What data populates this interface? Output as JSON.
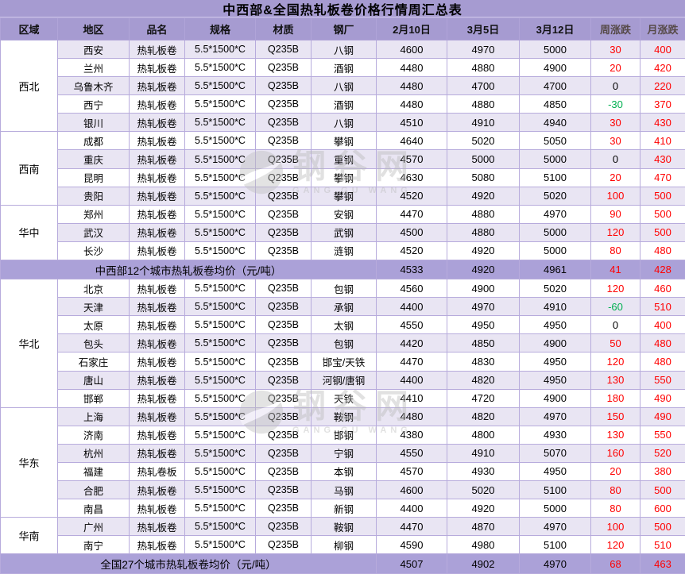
{
  "title": "中西部&全国热轧板卷价格行情周汇总表",
  "watermark": {
    "cn": "钢谷网",
    "en": "GANG GU WANG"
  },
  "colors": {
    "header_bg": "#a69bd1",
    "summary_bg": "#aba1d8",
    "stripe_bg": "#e9e5f3",
    "border": "#b7abdc",
    "up_red": "#ff0000",
    "down_green": "#00b050"
  },
  "chart_data": {
    "type": "table",
    "title": "中西部&全国热轧板卷价格行情周汇总表",
    "columns": [
      "区域",
      "地区",
      "品名",
      "规格",
      "材质",
      "钢厂",
      "2月10日",
      "3月5日",
      "3月12日",
      "周涨跌",
      "月涨跌"
    ],
    "regions": [
      {
        "name": "西北",
        "cities": [
          {
            "city": "西安",
            "product": "热轧板卷",
            "spec": "5.5*1500*C",
            "material": "Q235B",
            "mill": "八钢",
            "prices": [
              4600,
              4970,
              5000
            ],
            "week": 30,
            "month": 400
          },
          {
            "city": "兰州",
            "product": "热轧板卷",
            "spec": "5.5*1500*C",
            "material": "Q235B",
            "mill": "酒钢",
            "prices": [
              4480,
              4880,
              4900
            ],
            "week": 20,
            "month": 420
          },
          {
            "city": "乌鲁木齐",
            "product": "热轧板卷",
            "spec": "5.5*1500*C",
            "material": "Q235B",
            "mill": "八钢",
            "prices": [
              4480,
              4700,
              4700
            ],
            "week": 0,
            "month": 220
          },
          {
            "city": "西宁",
            "product": "热轧板卷",
            "spec": "5.5*1500*C",
            "material": "Q235B",
            "mill": "酒钢",
            "prices": [
              4480,
              4880,
              4850
            ],
            "week": -30,
            "month": 370
          },
          {
            "city": "银川",
            "product": "热轧板卷",
            "spec": "5.5*1500*C",
            "material": "Q235B",
            "mill": "八钢",
            "prices": [
              4510,
              4910,
              4940
            ],
            "week": 30,
            "month": 430
          }
        ]
      },
      {
        "name": "西南",
        "cities": [
          {
            "city": "成都",
            "product": "热轧板卷",
            "spec": "5.5*1500*C",
            "material": "Q235B",
            "mill": "攀钢",
            "prices": [
              4640,
              5020,
              5050
            ],
            "week": 30,
            "month": 410
          },
          {
            "city": "重庆",
            "product": "热轧板卷",
            "spec": "5.5*1500*C",
            "material": "Q235B",
            "mill": "重钢",
            "prices": [
              4570,
              5000,
              5000
            ],
            "week": 0,
            "month": 430
          },
          {
            "city": "昆明",
            "product": "热轧板卷",
            "spec": "5.5*1500*C",
            "material": "Q235B",
            "mill": "攀钢",
            "prices": [
              4630,
              5080,
              5100
            ],
            "week": 20,
            "month": 470
          },
          {
            "city": "贵阳",
            "product": "热轧板卷",
            "spec": "5.5*1500*C",
            "material": "Q235B",
            "mill": "攀钢",
            "prices": [
              4520,
              4920,
              5020
            ],
            "week": 100,
            "month": 500
          }
        ]
      },
      {
        "name": "华中",
        "cities": [
          {
            "city": "郑州",
            "product": "热轧板卷",
            "spec": "5.5*1500*C",
            "material": "Q235B",
            "mill": "安钢",
            "prices": [
              4470,
              4880,
              4970
            ],
            "week": 90,
            "month": 500
          },
          {
            "city": "武汉",
            "product": "热轧板卷",
            "spec": "5.5*1500*C",
            "material": "Q235B",
            "mill": "武钢",
            "prices": [
              4500,
              4880,
              5000
            ],
            "week": 120,
            "month": 500
          },
          {
            "city": "长沙",
            "product": "热轧板卷",
            "spec": "5.5*1500*C",
            "material": "Q235B",
            "mill": "涟钢",
            "prices": [
              4520,
              4920,
              5000
            ],
            "week": 80,
            "month": 480
          }
        ]
      },
      {
        "name": "华北",
        "cities": [
          {
            "city": "北京",
            "product": "热轧板卷",
            "spec": "5.5*1500*C",
            "material": "Q235B",
            "mill": "包钢",
            "prices": [
              4560,
              4900,
              5020
            ],
            "week": 120,
            "month": 460
          },
          {
            "city": "天津",
            "product": "热轧板卷",
            "spec": "5.5*1500*C",
            "material": "Q235B",
            "mill": "承钢",
            "prices": [
              4400,
              4970,
              4910
            ],
            "week": -60,
            "month": 510
          },
          {
            "city": "太原",
            "product": "热轧板卷",
            "spec": "5.5*1500*C",
            "material": "Q235B",
            "mill": "太钢",
            "prices": [
              4550,
              4950,
              4950
            ],
            "week": 0,
            "month": 400
          },
          {
            "city": "包头",
            "product": "热轧板卷",
            "spec": "5.5*1500*C",
            "material": "Q235B",
            "mill": "包钢",
            "prices": [
              4420,
              4850,
              4900
            ],
            "week": 50,
            "month": 480
          },
          {
            "city": "石家庄",
            "product": "热轧板卷",
            "spec": "5.5*1500*C",
            "material": "Q235B",
            "mill": "邯宝/天铁",
            "prices": [
              4470,
              4830,
              4950
            ],
            "week": 120,
            "month": 480
          },
          {
            "city": "唐山",
            "product": "热轧板卷",
            "spec": "5.5*1500*C",
            "material": "Q235B",
            "mill": "河钢/唐钢",
            "prices": [
              4400,
              4820,
              4950
            ],
            "week": 130,
            "month": 550
          },
          {
            "city": "邯郸",
            "product": "热轧板卷",
            "spec": "5.5*1500*C",
            "material": "Q235B",
            "mill": "天铁",
            "prices": [
              4410,
              4720,
              4900
            ],
            "week": 180,
            "month": 490
          }
        ]
      },
      {
        "name": "华东",
        "cities": [
          {
            "city": "上海",
            "product": "热轧板卷",
            "spec": "5.5*1500*C",
            "material": "Q235B",
            "mill": "鞍钢",
            "prices": [
              4480,
              4820,
              4970
            ],
            "week": 150,
            "month": 490
          },
          {
            "city": "济南",
            "product": "热轧板卷",
            "spec": "5.5*1500*C",
            "material": "Q235B",
            "mill": "邯钢",
            "prices": [
              4380,
              4800,
              4930
            ],
            "week": 130,
            "month": 550
          },
          {
            "city": "杭州",
            "product": "热轧板卷",
            "spec": "5.5*1500*C",
            "material": "Q235B",
            "mill": "宁钢",
            "prices": [
              4550,
              4910,
              5070
            ],
            "week": 160,
            "month": 520
          },
          {
            "city": "福建",
            "product": "热轧卷板",
            "spec": "5.5*1500*C",
            "material": "Q235B",
            "mill": "本钢",
            "prices": [
              4570,
              4930,
              4950
            ],
            "week": 20,
            "month": 380
          },
          {
            "city": "合肥",
            "product": "热轧板卷",
            "spec": "5.5*1500*C",
            "material": "Q235B",
            "mill": "马钢",
            "prices": [
              4600,
              5020,
              5100
            ],
            "week": 80,
            "month": 500
          },
          {
            "city": "南昌",
            "product": "热轧板卷",
            "spec": "5.5*1500*C",
            "material": "Q235B",
            "mill": "新钢",
            "prices": [
              4400,
              4920,
              5000
            ],
            "week": 80,
            "month": 600
          }
        ]
      },
      {
        "name": "华南",
        "cities": [
          {
            "city": "广州",
            "product": "热轧板卷",
            "spec": "5.5*1500*C",
            "material": "Q235B",
            "mill": "鞍钢",
            "prices": [
              4470,
              4870,
              4970
            ],
            "week": 100,
            "month": 500
          },
          {
            "city": "南宁",
            "product": "热轧板卷",
            "spec": "5.5*1500*C",
            "material": "Q235B",
            "mill": "柳钢",
            "prices": [
              4590,
              4980,
              5100
            ],
            "week": 120,
            "month": 510
          }
        ]
      }
    ],
    "summary_rows": [
      {
        "after_region": "华中",
        "label": "中西部12个城市热轧板卷均价（元/吨）",
        "prices": [
          4533,
          4920,
          4961
        ],
        "week": 41,
        "month": 428
      },
      {
        "after_region": "华南",
        "label": "全国27个城市热轧板卷均价（元/吨）",
        "prices": [
          4507,
          4902,
          4970
        ],
        "week": 68,
        "month": 463
      }
    ]
  }
}
